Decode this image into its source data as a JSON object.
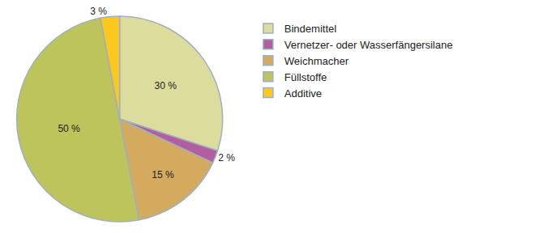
{
  "chart_data": {
    "type": "pie",
    "categories": [
      "Bindemittel",
      "Vernetzer- oder Wasserfängersilane",
      "Weichmacher",
      "Füllstoffe",
      "Additive"
    ],
    "values": [
      30,
      2,
      15,
      50,
      3
    ],
    "value_labels": [
      "30 %",
      "2 %",
      "15 %",
      "50 %",
      "3 %"
    ],
    "colors": [
      "#dcdc9c",
      "#b25fa2",
      "#d4ab5e",
      "#bdc45c",
      "#fcc81e"
    ],
    "data_labels": true,
    "legend": "right"
  }
}
